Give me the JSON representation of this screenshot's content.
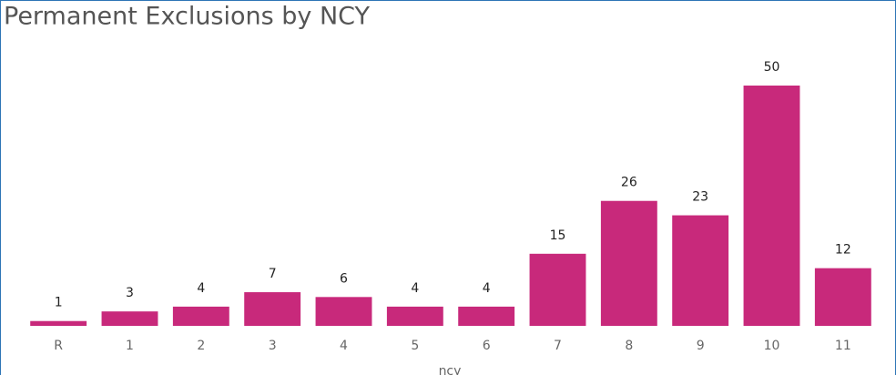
{
  "chart_data": {
    "type": "bar",
    "title": "Permanent Exclusions by NCY",
    "x_label": "ncy",
    "categories": [
      "R",
      "1",
      "2",
      "3",
      "4",
      "5",
      "6",
      "7",
      "8",
      "9",
      "10",
      "11"
    ],
    "values": [
      1,
      3,
      4,
      7,
      6,
      4,
      4,
      15,
      26,
      23,
      50,
      12
    ],
    "color": "#c8297b"
  }
}
